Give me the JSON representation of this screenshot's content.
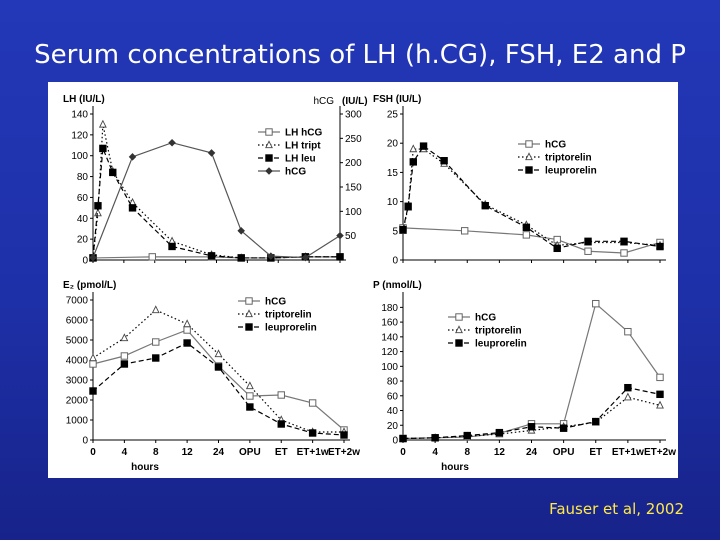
{
  "title": "Serum concentrations of LH (h.CG), FSH, E2 and P",
  "citation": "Fauser et al, 2002",
  "chart_data": [
    {
      "id": "lh",
      "type": "line",
      "title": "",
      "ylabel": "LH (IU/L)",
      "y2label": "hCG",
      "y2unit": "(IU/L)",
      "ylim": [
        0,
        140
      ],
      "yticks": [
        0,
        20,
        40,
        60,
        80,
        100,
        120,
        140
      ],
      "y2lim": [
        0,
        300
      ],
      "y2ticks": [
        50,
        100,
        150,
        200,
        250,
        300
      ],
      "x_categories": [],
      "xlabel": "",
      "legend_position": "right",
      "series": [
        {
          "name": "LH hCG",
          "marker": "square-open",
          "dash": "solid",
          "axis": "left",
          "points": [
            [
              0,
              2
            ],
            [
              12,
              3
            ],
            [
              24,
              3
            ],
            [
              30,
              2
            ],
            [
              36,
              2
            ],
            [
              43,
              3
            ],
            [
              50,
              3
            ]
          ]
        },
        {
          "name": "LH tript",
          "marker": "triangle-open",
          "dash": "dot",
          "axis": "left",
          "points": [
            [
              0,
              2
            ],
            [
              1,
              45
            ],
            [
              2,
              130
            ],
            [
              4,
              85
            ],
            [
              8,
              55
            ],
            [
              16,
              18
            ],
            [
              24,
              5
            ],
            [
              30,
              2
            ],
            [
              36,
              2
            ],
            [
              43,
              3
            ],
            [
              50,
              3
            ]
          ]
        },
        {
          "name": "LH leu",
          "marker": "square",
          "dash": "dash",
          "axis": "left",
          "points": [
            [
              0,
              2
            ],
            [
              1,
              52
            ],
            [
              2,
              107
            ],
            [
              4,
              84
            ],
            [
              8,
              50
            ],
            [
              16,
              13
            ],
            [
              24,
              4
            ],
            [
              30,
              2
            ],
            [
              36,
              2
            ],
            [
              43,
              3
            ],
            [
              50,
              3
            ]
          ]
        },
        {
          "name": "hCG",
          "marker": "diamond",
          "dash": "solid",
          "axis": "right",
          "points": [
            [
              0,
              5
            ],
            [
              8,
              212
            ],
            [
              16,
              241
            ],
            [
              24,
              220
            ],
            [
              30,
              60
            ],
            [
              36,
              8
            ],
            [
              43,
              5
            ],
            [
              50,
              50
            ]
          ]
        }
      ]
    },
    {
      "id": "fsh",
      "type": "line",
      "title": "",
      "ylabel": "FSH (IU/L)",
      "ylim": [
        0,
        25
      ],
      "yticks": [
        0,
        5,
        10,
        15,
        20,
        25
      ],
      "x_categories": [],
      "xlabel": "",
      "legend_position": "right",
      "series": [
        {
          "name": "hCG",
          "marker": "square-open",
          "dash": "solid",
          "points": [
            [
              0,
              5.5
            ],
            [
              12,
              5
            ],
            [
              24,
              4.3
            ],
            [
              30,
              3.5
            ],
            [
              36,
              1.5
            ],
            [
              43,
              1.2
            ],
            [
              50,
              3
            ]
          ]
        },
        {
          "name": "triptorelin",
          "marker": "triangle-open",
          "dash": "dot",
          "points": [
            [
              0,
              5
            ],
            [
              1,
              9
            ],
            [
              2,
              19
            ],
            [
              4,
              19
            ],
            [
              8,
              16.5
            ],
            [
              16,
              9.5
            ],
            [
              24,
              6
            ],
            [
              30,
              2.5
            ],
            [
              36,
              3
            ],
            [
              43,
              3
            ],
            [
              50,
              2.5
            ]
          ]
        },
        {
          "name": "leuprorelin",
          "marker": "square",
          "dash": "dash",
          "points": [
            [
              0,
              5.2
            ],
            [
              1,
              9.2
            ],
            [
              2,
              16.8
            ],
            [
              4,
              19.5
            ],
            [
              8,
              17
            ],
            [
              16,
              9.3
            ],
            [
              24,
              5.6
            ],
            [
              30,
              2
            ],
            [
              36,
              3.2
            ],
            [
              43,
              3.2
            ],
            [
              50,
              2.3
            ]
          ]
        }
      ]
    },
    {
      "id": "e2",
      "type": "line",
      "title": "",
      "ylabel": "E₂ (pmol/L)",
      "ylim": [
        0,
        7000
      ],
      "yticks": [
        0,
        1000,
        2000,
        3000,
        4000,
        5000,
        6000,
        7000
      ],
      "x_categories": [
        "0",
        "4",
        "8",
        "12",
        "24",
        "OPU",
        "ET",
        "ET+1w",
        "ET+2w"
      ],
      "xlabel": "hours",
      "legend_position": "top-right",
      "series": [
        {
          "name": "hCG",
          "marker": "square-open",
          "dash": "solid",
          "points": [
            [
              0,
              3800
            ],
            [
              1,
              4200
            ],
            [
              2,
              4900
            ],
            [
              3,
              5500
            ],
            [
              4,
              3700
            ],
            [
              5,
              2200
            ],
            [
              6,
              2250
            ],
            [
              7,
              1850
            ],
            [
              8,
              500
            ]
          ]
        },
        {
          "name": "triptorelin",
          "marker": "triangle-open",
          "dash": "dot",
          "points": [
            [
              0,
              4100
            ],
            [
              1,
              5100
            ],
            [
              2,
              6500
            ],
            [
              3,
              5800
            ],
            [
              4,
              4300
            ],
            [
              5,
              2700
            ],
            [
              6,
              1000
            ],
            [
              7,
              400
            ],
            [
              8,
              400
            ]
          ]
        },
        {
          "name": "leuprorelin",
          "marker": "square",
          "dash": "dash",
          "points": [
            [
              0,
              2450
            ],
            [
              1,
              3800
            ],
            [
              2,
              4100
            ],
            [
              3,
              4850
            ],
            [
              4,
              3650
            ],
            [
              5,
              1650
            ],
            [
              6,
              800
            ],
            [
              7,
              350
            ],
            [
              8,
              250
            ]
          ]
        }
      ]
    },
    {
      "id": "p",
      "type": "line",
      "title": "",
      "ylabel": "P (nmol/L)",
      "ylim": [
        0,
        190
      ],
      "yticks": [
        0,
        20,
        40,
        60,
        80,
        100,
        120,
        140,
        160,
        180
      ],
      "x_categories": [
        "0",
        "4",
        "8",
        "12",
        "24",
        "OPU",
        "ET",
        "ET+1w",
        "ET+2w"
      ],
      "xlabel": "hours",
      "legend_position": "top-right",
      "series": [
        {
          "name": "hCG",
          "marker": "square-open",
          "dash": "solid",
          "points": [
            [
              0,
              2
            ],
            [
              1,
              3
            ],
            [
              2,
              4
            ],
            [
              3,
              9
            ],
            [
              4,
              22
            ],
            [
              5,
              22
            ],
            [
              6,
              185
            ],
            [
              7,
              147
            ],
            [
              8,
              85
            ]
          ]
        },
        {
          "name": "triptorelin",
          "marker": "triangle-open",
          "dash": "dot",
          "points": [
            [
              0,
              2
            ],
            [
              1,
              3
            ],
            [
              2,
              5
            ],
            [
              3,
              8
            ],
            [
              4,
              13
            ],
            [
              5,
              18
            ],
            [
              6,
              24
            ],
            [
              7,
              58
            ],
            [
              8,
              47
            ]
          ]
        },
        {
          "name": "leuprorelin",
          "marker": "square",
          "dash": "dash",
          "points": [
            [
              0,
              2
            ],
            [
              1,
              3
            ],
            [
              2,
              6
            ],
            [
              3,
              10
            ],
            [
              4,
              18
            ],
            [
              5,
              16
            ],
            [
              6,
              25
            ],
            [
              7,
              71
            ],
            [
              8,
              62
            ]
          ]
        }
      ]
    }
  ]
}
